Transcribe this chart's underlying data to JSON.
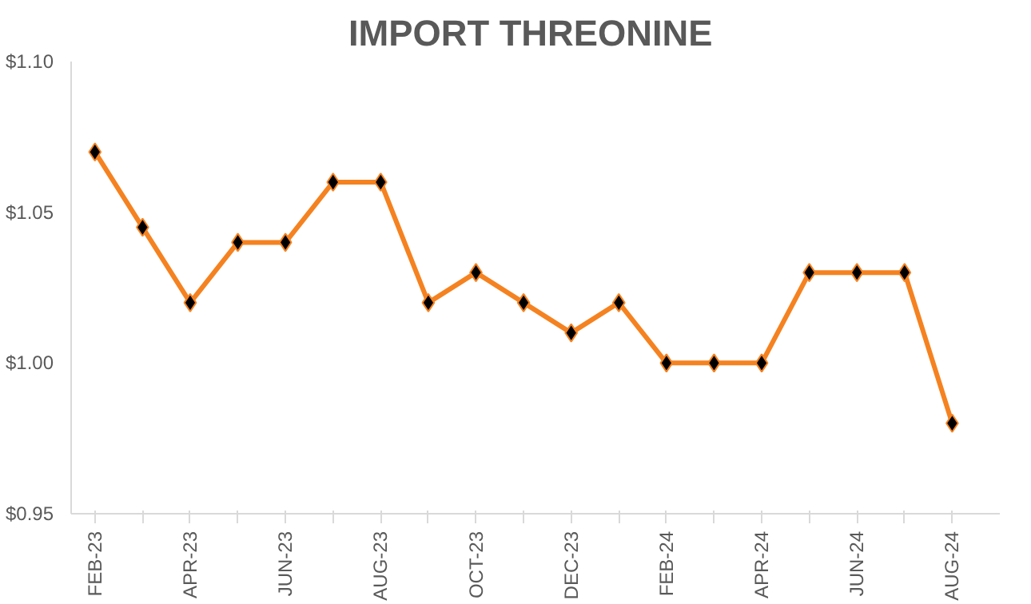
{
  "chart_data": {
    "type": "line",
    "title": "IMPORT  THREONINE",
    "categories": [
      "FEB-23",
      null,
      "APR-23",
      null,
      "JUN-23",
      null,
      "AUG-23",
      null,
      "OCT-23",
      null,
      "DEC-23",
      null,
      "FEB-24",
      null,
      "APR-24",
      null,
      "JUN-24",
      null,
      "AUG-24"
    ],
    "series": [
      {
        "color": "#f58220",
        "values": [
          1.07,
          1.045,
          1.02,
          1.04,
          1.04,
          1.06,
          1.06,
          1.02,
          1.03,
          1.02,
          1.01,
          1.02,
          1.0,
          1.0,
          1.0,
          1.03,
          1.03,
          1.03,
          0.98
        ]
      }
    ],
    "ylim": [
      0.95,
      1.1
    ],
    "yticks": [
      {
        "value": 0.95,
        "label": "$0.95"
      },
      {
        "value": 1.0,
        "label": "$1.00"
      },
      {
        "value": 1.05,
        "label": "$1.05"
      },
      {
        "value": 1.1,
        "label": "$1.10"
      }
    ],
    "grid": false,
    "marker": "diamond",
    "line_style": "solid"
  }
}
